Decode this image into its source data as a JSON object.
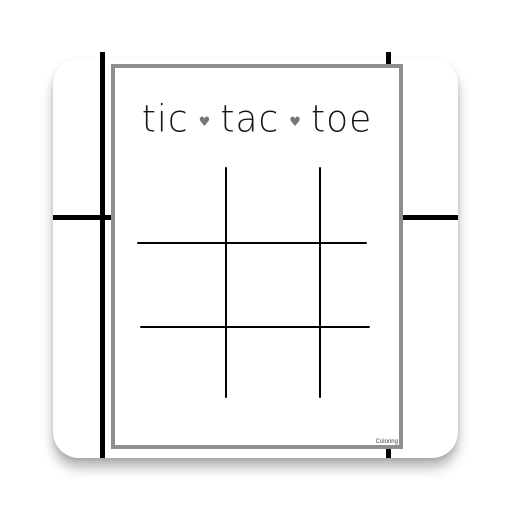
{
  "title": {
    "word1": "tic",
    "word2": "tac",
    "word3": "toe"
  },
  "brand_text": "Coloring",
  "colors": {
    "frame": "#8e8e8e",
    "ink": "#000000",
    "heart": "#777777"
  }
}
